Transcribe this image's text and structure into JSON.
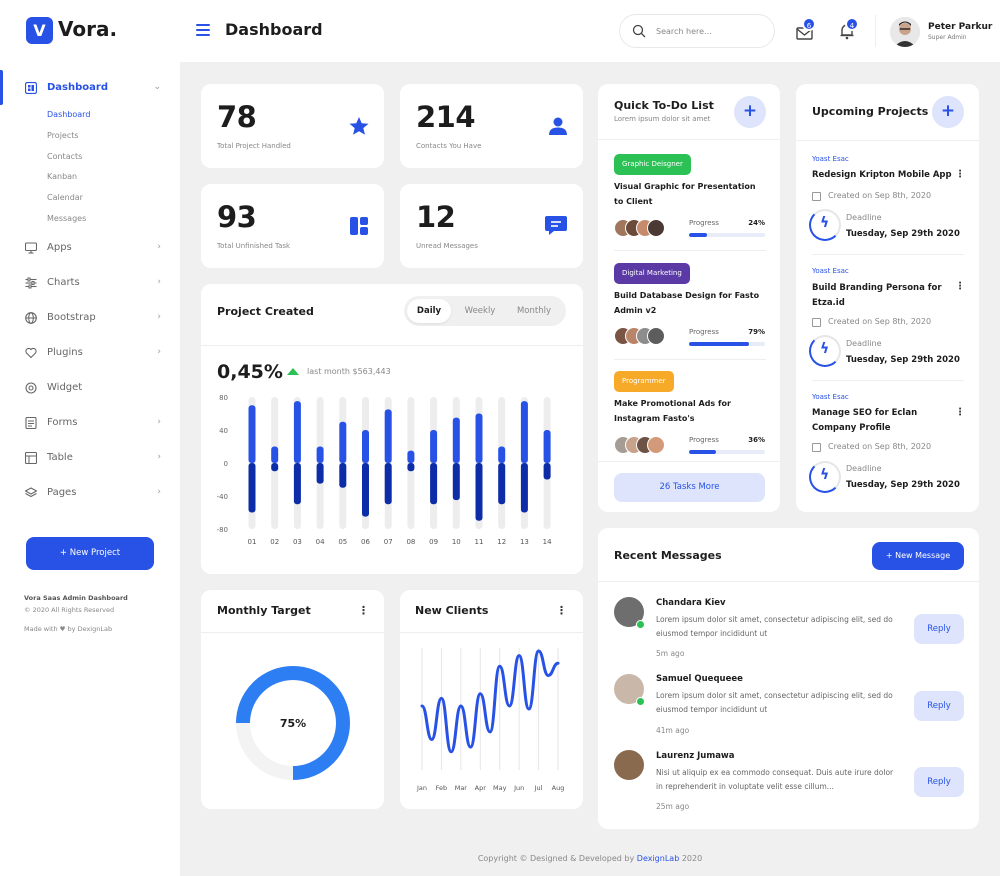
{
  "app": {
    "logo_letter": "V",
    "logo_text": "Vora."
  },
  "header": {
    "title": "Dashboard",
    "search_placeholder": "Search here...",
    "notif_mail_count": "6",
    "notif_bell_count": "4",
    "user_name": "Peter Parkur",
    "user_role": "Super Admin"
  },
  "sidebar": {
    "main_item": "Dashboard",
    "sub_items": [
      "Dashboard",
      "Projects",
      "Contacts",
      "Kanban",
      "Calendar",
      "Messages"
    ],
    "items": [
      "Apps",
      "Charts",
      "Bootstrap",
      "Plugins",
      "Widget",
      "Forms",
      "Table",
      "Pages"
    ],
    "new_project": "+ New Project",
    "footer_title": "Vora Saas Admin Dashboard",
    "footer_copy": "© 2020 All Rights Reserved",
    "footer_made": "Made with ♥ by DexignLab"
  },
  "stats": [
    {
      "value": "78",
      "label": "Total Project Handled"
    },
    {
      "value": "214",
      "label": "Contacts You Have"
    },
    {
      "value": "93",
      "label": "Total Unfinished Task"
    },
    {
      "value": "12",
      "label": "Unread Messages"
    }
  ],
  "project_created": {
    "title": "Project Created",
    "tabs": [
      "Daily",
      "Weekly",
      "Monthly"
    ],
    "active_tab": "Daily",
    "percent": "0,45%",
    "last_month": "last month $563,443"
  },
  "chart_data": [
    {
      "type": "bar",
      "categories": [
        "01",
        "02",
        "03",
        "04",
        "05",
        "06",
        "07",
        "08",
        "09",
        "10",
        "11",
        "12",
        "13",
        "14"
      ],
      "ylim": [
        -80,
        80
      ],
      "yticks": [
        80,
        40,
        0,
        -40,
        -80
      ],
      "series": [
        {
          "values": [
            70,
            20,
            75,
            20,
            50,
            40,
            65,
            15,
            40,
            55,
            60,
            20,
            75,
            40
          ]
        },
        {
          "values": [
            -60,
            -10,
            -50,
            -25,
            -30,
            -65,
            -50,
            -10,
            -50,
            -45,
            -70,
            -50,
            -60,
            -20
          ]
        }
      ],
      "track_range": [
        -80,
        80
      ]
    },
    {
      "type": "line",
      "categories": [
        "Jan",
        "Feb",
        "Mar",
        "Apr",
        "May",
        "Jun",
        "Jul",
        "Aug"
      ],
      "x": [
        0,
        0.5,
        1,
        1.5,
        2,
        2.5,
        3,
        3.5,
        4,
        4.5,
        5,
        5.5,
        6,
        6.5,
        7
      ],
      "values": [
        42,
        20,
        47,
        12,
        42,
        15,
        50,
        25,
        68,
        42,
        75,
        40,
        78,
        62,
        70
      ]
    },
    {
      "type": "pie",
      "values": [
        75
      ],
      "label": "75%"
    }
  ],
  "monthly_target": {
    "title": "Monthly Target",
    "percent_label": "75%",
    "percent": 75
  },
  "new_clients": {
    "title": "New Clients"
  },
  "todo": {
    "title": "Quick To-Do List",
    "subtitle": "Lorem ipsum dolor sit amet",
    "progress_label": "Progress",
    "items": [
      {
        "tag": "Graphic Deisgner",
        "tag_color": "#2bc155",
        "title": "Visual Graphic for Presentation to Client",
        "percent": "24%",
        "fill": 0.24
      },
      {
        "tag": "Digital Marketing",
        "tag_color": "#5b3aa6",
        "title": "Build Database Design for Fasto Admin v2",
        "percent": "79%",
        "fill": 0.79
      },
      {
        "tag": "Programmer",
        "tag_color": "#f7a928",
        "title": "Make Promotional Ads for Instagram Fasto's",
        "percent": "36%",
        "fill": 0.36
      }
    ],
    "more": "26 Tasks More"
  },
  "upcoming": {
    "title": "Upcoming Projects",
    "deadline_label": "Deadline",
    "items": [
      {
        "client": "Yoast Esac",
        "title": "Redesign Kripton Mobile App",
        "created": "Created on Sep 8th, 2020",
        "deadline": "Tuesday, Sep 29th 2020"
      },
      {
        "client": "Yoast Esac",
        "title": "Build Branding Persona for Etza.id",
        "created": "Created on Sep 8th, 2020",
        "deadline": "Tuesday, Sep 29th 2020"
      },
      {
        "client": "Yoast Esac",
        "title": "Manage SEO for Eclan Company Profile",
        "created": "Created on Sep 8th, 2020",
        "deadline": "Tuesday, Sep 29th 2020"
      }
    ]
  },
  "messages": {
    "title": "Recent Messages",
    "new_button": "+ New Message",
    "reply_label": "Reply",
    "items": [
      {
        "name": "Chandara Kiev",
        "text": "Lorem ipsum dolor sit amet, consectetur adipiscing elit, sed do eiusmod tempor incididunt ut",
        "time": "5m ago",
        "online": true
      },
      {
        "name": "Samuel Quequeee",
        "text": "Lorem ipsum dolor sit amet, consectetur adipiscing elit, sed do eiusmod tempor incididunt ut",
        "time": "41m ago",
        "online": true
      },
      {
        "name": "Laurenz Jumawa",
        "text": "Nisi ut aliquip ex ea commodo consequat. Duis aute irure dolor in reprehenderit in voluptate velit esse cillum...",
        "time": "25m ago",
        "online": false
      }
    ]
  },
  "footer": {
    "copyright_prefix": "Copyright © Designed & Developed by",
    "brand": "DexignLab",
    "year": "2020"
  },
  "colors": {
    "accent": "#2852e6",
    "accent_dark": "#0d2ca8",
    "accent_light": "#dde4fb",
    "success": "#2bc155"
  }
}
